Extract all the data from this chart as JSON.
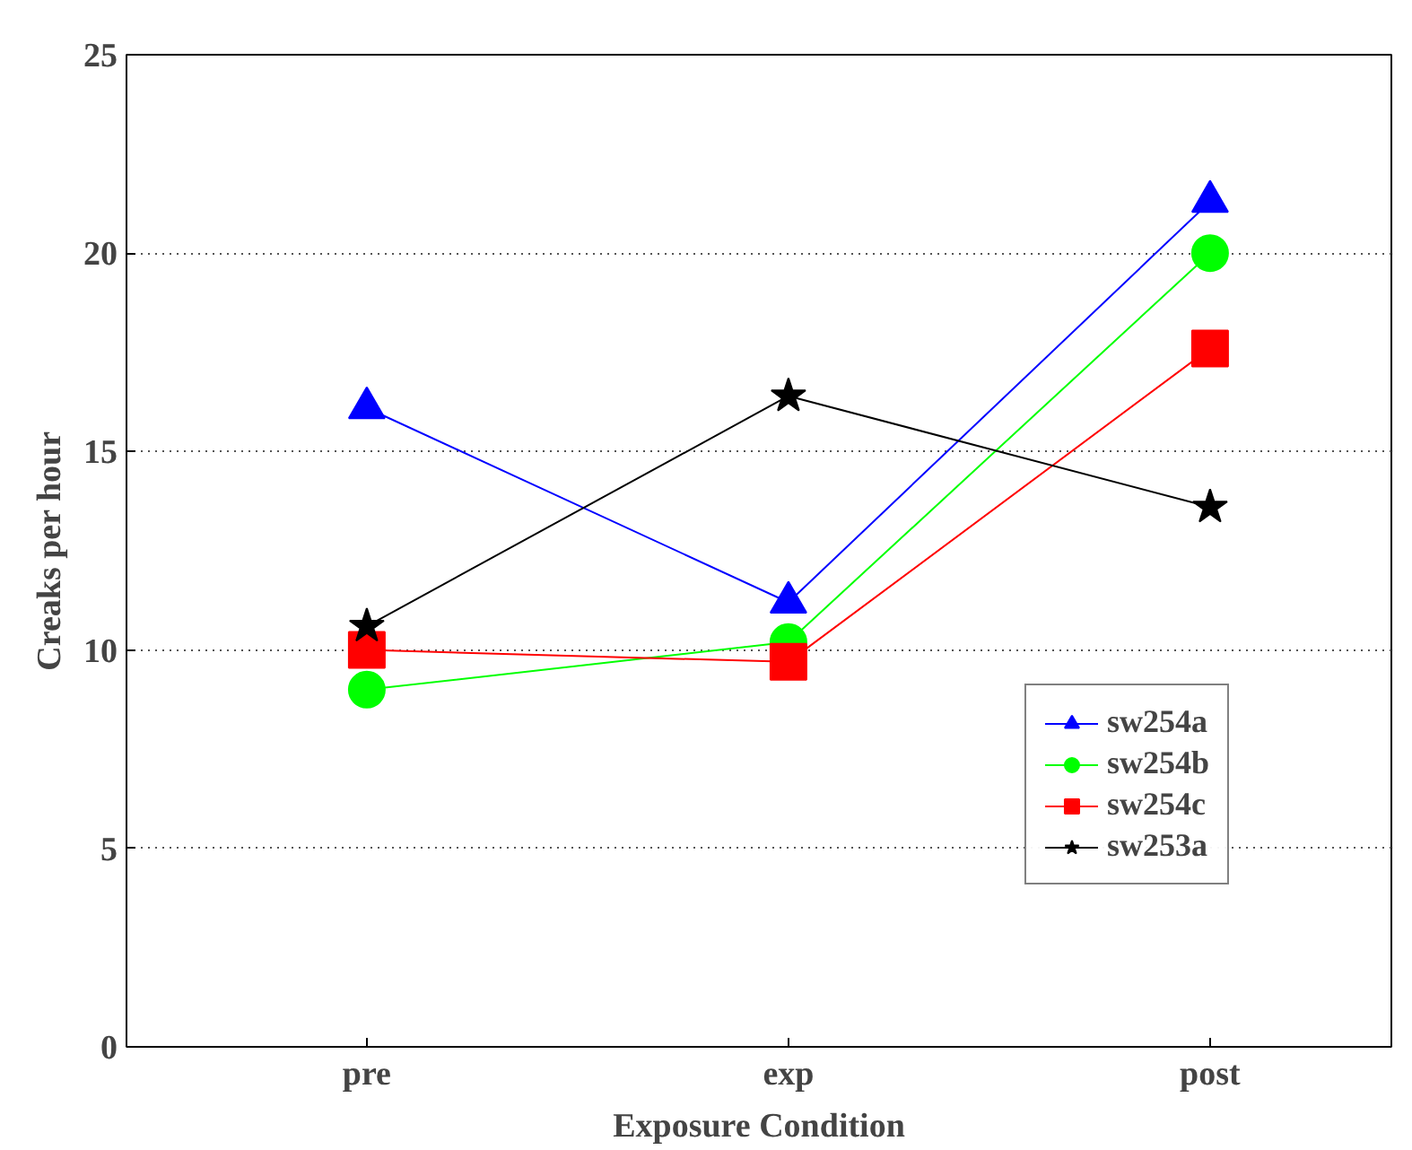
{
  "chart_data": {
    "type": "line",
    "xlabel": "Exposure Condition",
    "ylabel": "Creaks per hour",
    "categories": [
      "pre",
      "exp",
      "post"
    ],
    "series": [
      {
        "name": "sw254a",
        "color": "#0000ff",
        "marker": "triangle",
        "values": [
          16.1,
          11.2,
          21.3
        ]
      },
      {
        "name": "sw254b",
        "color": "#00ff00",
        "marker": "circle",
        "values": [
          9.0,
          10.2,
          20.0
        ]
      },
      {
        "name": "sw254c",
        "color": "#ff0000",
        "marker": "square",
        "values": [
          10.0,
          9.7,
          17.6
        ]
      },
      {
        "name": "sw253a",
        "color": "#000000",
        "marker": "star",
        "values": [
          10.6,
          16.4,
          13.6
        ]
      }
    ],
    "ylim": [
      0,
      25
    ],
    "yticks": [
      0,
      5,
      10,
      15,
      20,
      25
    ],
    "grid": "y",
    "legend": "bottom right",
    "line_style": "solid"
  }
}
